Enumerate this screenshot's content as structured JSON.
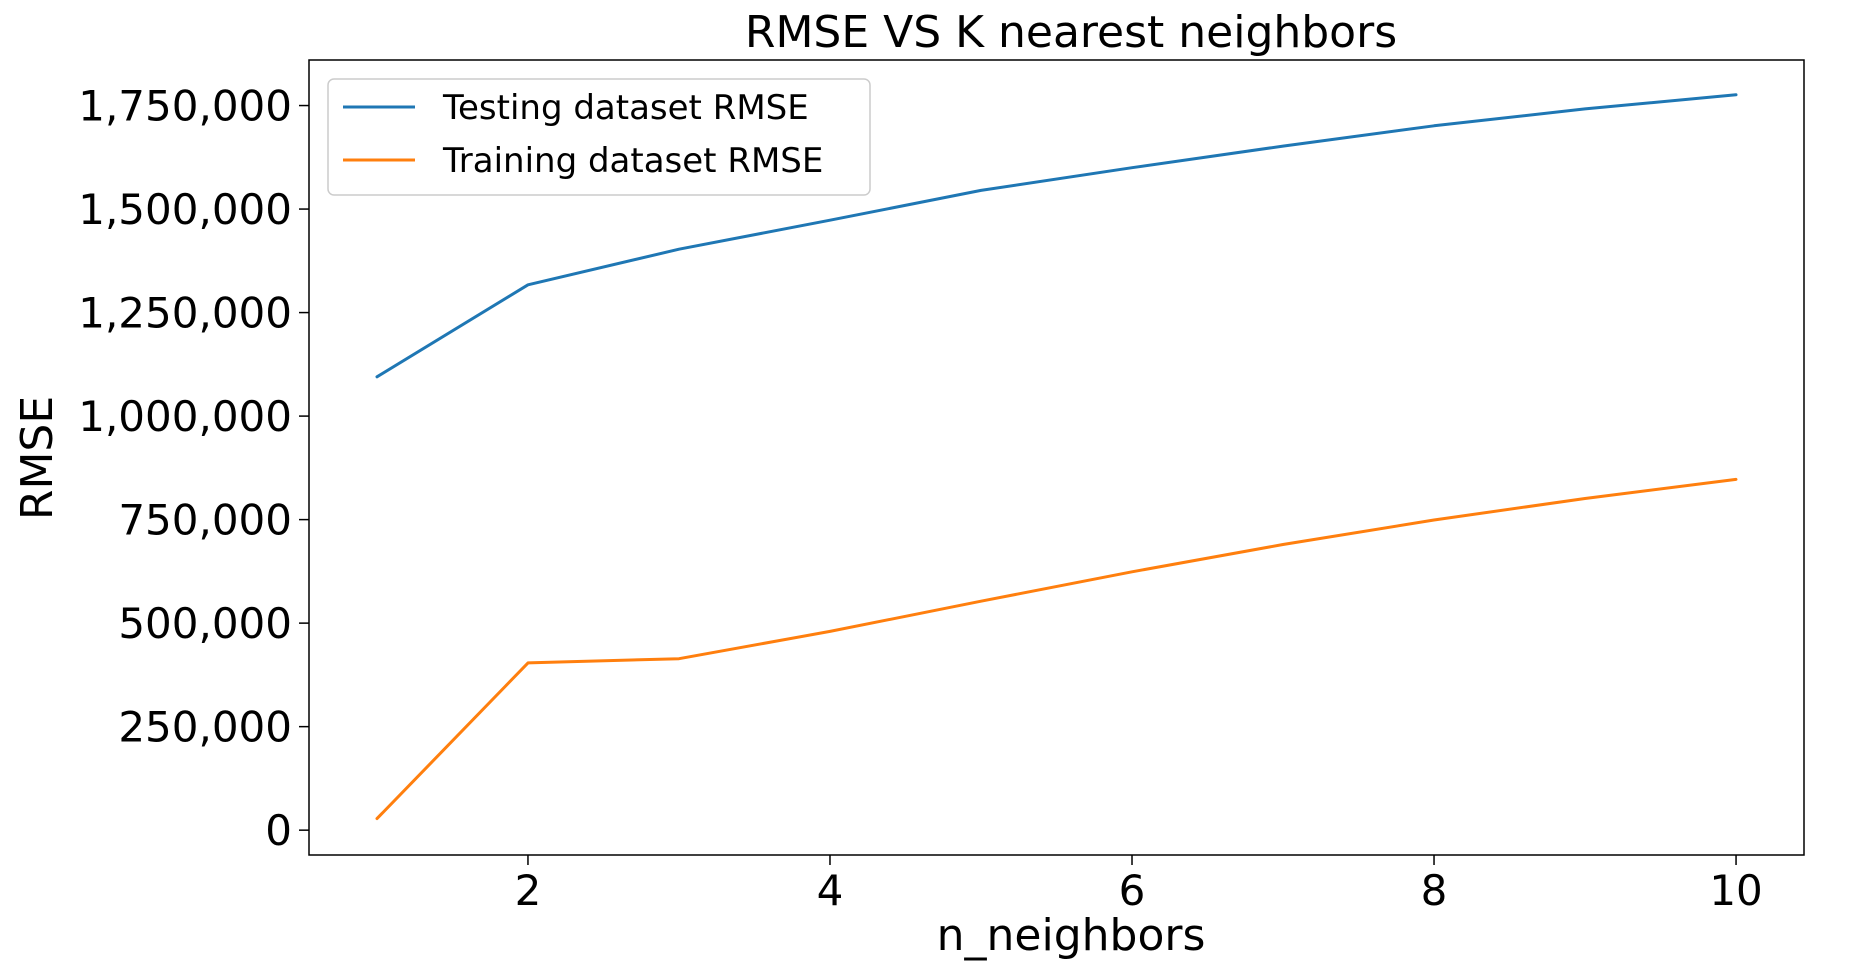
{
  "chart_data": {
    "type": "line",
    "title": "RMSE VS K nearest neighbors",
    "xlabel": "n_neighbors",
    "ylabel": "RMSE",
    "xlim": [
      0.55,
      10.45
    ],
    "ylim": [
      -60000,
      1860000
    ],
    "x_ticks": [
      2,
      4,
      6,
      8,
      10
    ],
    "x_tick_labels": [
      "2",
      "4",
      "6",
      "8",
      "10"
    ],
    "y_ticks": [
      0,
      250000,
      500000,
      750000,
      1000000,
      1250000,
      1500000,
      1750000
    ],
    "y_tick_labels": [
      "0",
      "250,000",
      "500,000",
      "750,000",
      "1,000,000",
      "1,250,000",
      "1,500,000",
      "1,750,000"
    ],
    "x": [
      1,
      2,
      3,
      4,
      5,
      6,
      7,
      8,
      9,
      10
    ],
    "series": [
      {
        "name": "Testing dataset RMSE",
        "color": "#1f77b4",
        "values": [
          1095000,
          1317000,
          1403000,
          1473000,
          1545000,
          1600000,
          1652000,
          1701000,
          1742000,
          1776000
        ]
      },
      {
        "name": "Training dataset RMSE",
        "color": "#ff7f0e",
        "values": [
          28000,
          404000,
          414000,
          480000,
          553000,
          624000,
          690000,
          749000,
          801000,
          847000
        ]
      }
    ],
    "legend_position": "top-left",
    "grid": false
  }
}
